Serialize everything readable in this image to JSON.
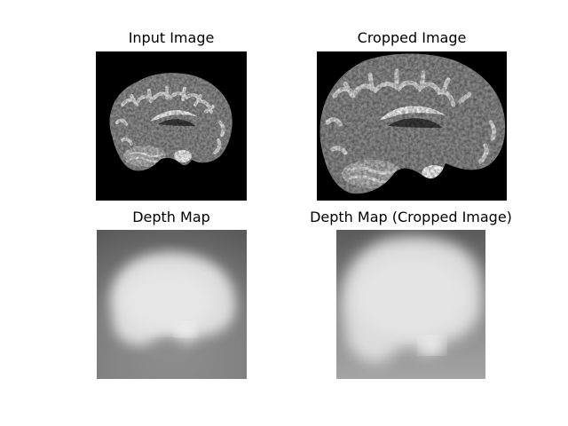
{
  "figure": {
    "panels": [
      {
        "title": "Input Image"
      },
      {
        "title": "Cropped Image"
      },
      {
        "title": "Depth Map"
      },
      {
        "title": "Depth Map (Cropped Image)"
      }
    ]
  }
}
